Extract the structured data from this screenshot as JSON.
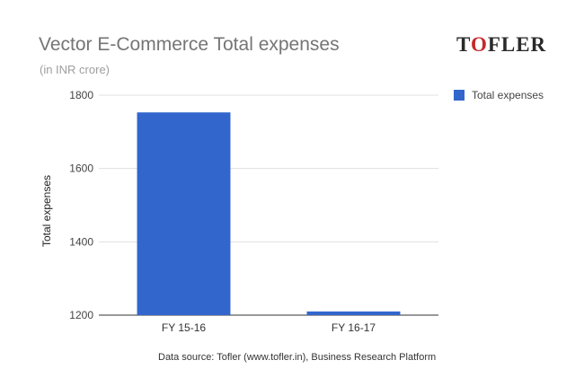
{
  "logo": {
    "text_before": "T",
    "accent": "O",
    "text_after": "FLER"
  },
  "source_text": "Data source: Tofler (www.tofler.in), Business Research Platform",
  "chart_data": {
    "type": "bar",
    "title": "Vector E-Commerce Total expenses",
    "subtitle": "(in INR crore)",
    "xlabel": "",
    "ylabel": "Total expenses",
    "categories": [
      "FY 15-16",
      "FY 16-17"
    ],
    "series": [
      {
        "name": "Total expenses",
        "values": [
          1753,
          1210
        ],
        "color": "#3366cc"
      }
    ],
    "ylim": [
      1200,
      1800
    ],
    "yticks": [
      1200,
      1400,
      1600,
      1800
    ],
    "grid": true,
    "legend": "right",
    "gridline_color": "#e0e0e0",
    "axis_color": "#333333"
  }
}
